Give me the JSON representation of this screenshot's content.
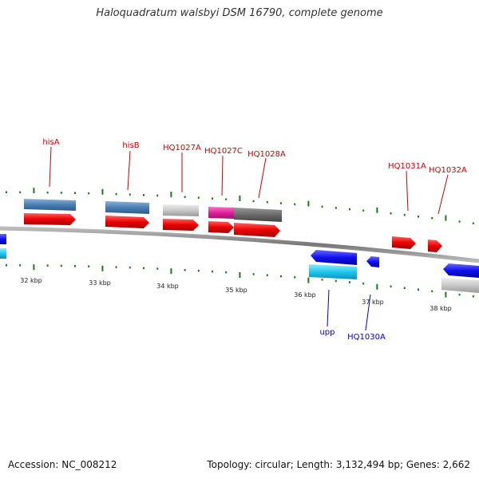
{
  "title": "Haloquadratum walsbyi DSM 16790, complete genome",
  "accession": "Accession: NC_008212",
  "summary": "Topology: circular; Length: 3,132,494 bp; Genes: 2,662",
  "colors": {
    "gene_forward": "#ee0000",
    "gene_reverse": "#1010ee",
    "cds_steelblue": "#4a7fb5",
    "cds_gray": "#c8c8c8",
    "cds_darkgray": "#6b6b6b",
    "cds_magenta": "#e0209a",
    "cds_cyan": "#20c8ee",
    "tick": "#1a7a1a",
    "backbone": "#888888"
  },
  "gene_labels": [
    {
      "name": "hisA",
      "strand": "forward"
    },
    {
      "name": "hisB",
      "strand": "forward"
    },
    {
      "name": "HQ1027A",
      "strand": "forward"
    },
    {
      "name": "HQ1027C",
      "strand": "forward"
    },
    {
      "name": "HQ1028A",
      "strand": "forward"
    },
    {
      "name": "HQ1031A",
      "strand": "forward"
    },
    {
      "name": "HQ1032A",
      "strand": "forward"
    },
    {
      "name": "upp",
      "strand": "reverse"
    },
    {
      "name": "HQ1030A",
      "strand": "reverse"
    }
  ],
  "scale_labels": [
    "32 kbp",
    "33 kbp",
    "34 kbp",
    "35 kbp",
    "36 kbp",
    "37 kbp",
    "38 kbp"
  ]
}
